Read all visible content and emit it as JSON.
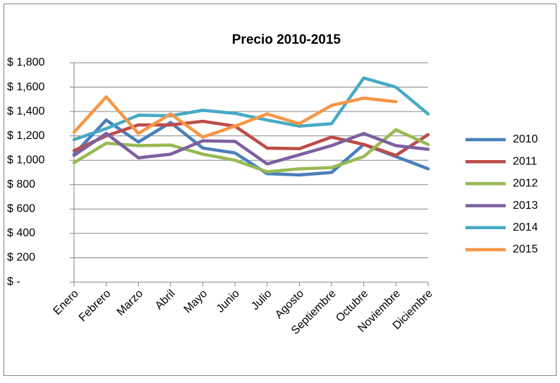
{
  "chart_data": {
    "type": "line",
    "title": "Precio 2010-2015",
    "categories": [
      "Enero",
      "Febrero",
      "Marzo",
      "Abril",
      "Mayo",
      "Junio",
      "Julio",
      "Agosto",
      "Septiembre",
      "Octubre",
      "Noviembre",
      "Diciembre"
    ],
    "series": [
      {
        "name": "2010",
        "color": "#4a7ebb",
        "values": [
          1050,
          1330,
          1150,
          1310,
          1100,
          1060,
          890,
          880,
          900,
          1130,
          1030,
          930
        ]
      },
      {
        "name": "2011",
        "color": "#be4b48",
        "values": [
          1080,
          1200,
          1290,
          1290,
          1320,
          1280,
          1100,
          1095,
          1190,
          1130,
          1040,
          1210
        ]
      },
      {
        "name": "2012",
        "color": "#98b954",
        "values": [
          980,
          1140,
          1120,
          1125,
          1050,
          1000,
          905,
          930,
          940,
          1030,
          1250,
          1130
        ]
      },
      {
        "name": "2013",
        "color": "#7d60a0",
        "values": [
          1040,
          1220,
          1020,
          1050,
          1160,
          1155,
          970,
          1045,
          1120,
          1220,
          1120,
          1090
        ]
      },
      {
        "name": "2014",
        "color": "#46aac5",
        "values": [
          1170,
          1260,
          1370,
          1365,
          1410,
          1385,
          1330,
          1280,
          1300,
          1675,
          1600,
          1380
        ]
      },
      {
        "name": "2015",
        "color": "#f79646",
        "values": [
          1230,
          1520,
          1220,
          1380,
          1190,
          1280,
          1380,
          1300,
          1450,
          1510,
          1480,
          null
        ]
      }
    ],
    "ylim": [
      0,
      1800
    ],
    "yticks": [
      {
        "value": 0,
        "label": "$ -"
      },
      {
        "value": 200,
        "label": "$ 200"
      },
      {
        "value": 400,
        "label": "$ 400"
      },
      {
        "value": 600,
        "label": "$ 600"
      },
      {
        "value": 800,
        "label": "$ 800"
      },
      {
        "value": 1000,
        "label": "$ 1,000"
      },
      {
        "value": 1200,
        "label": "$ 1,200"
      },
      {
        "value": 1400,
        "label": "$ 1,400"
      },
      {
        "value": 1600,
        "label": "$ 1,600"
      },
      {
        "value": 1800,
        "label": "$ 1,800"
      }
    ],
    "grid": true,
    "legend": "right"
  }
}
